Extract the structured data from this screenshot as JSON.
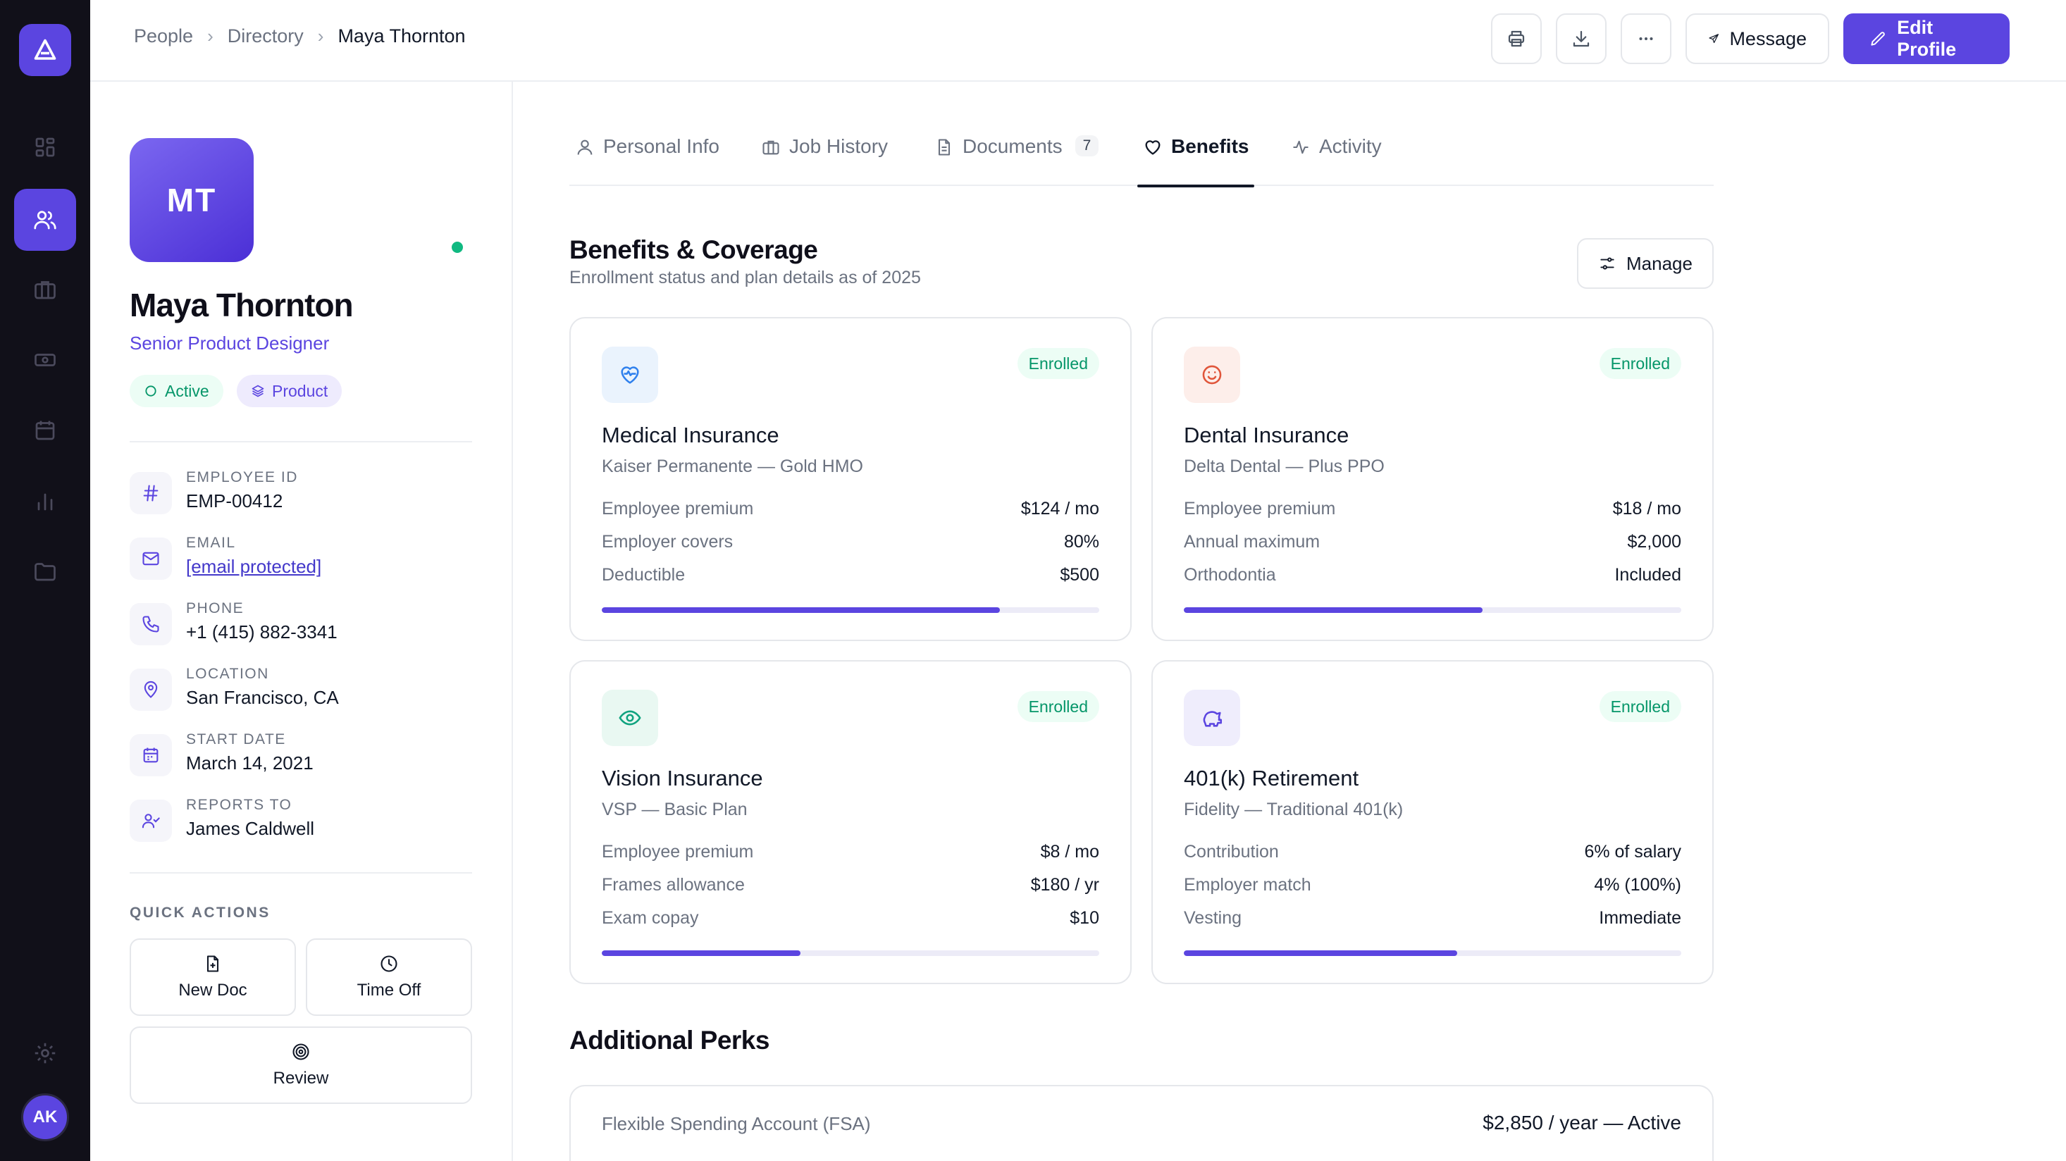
{
  "app": {
    "logo_icon": "triangle-logo-icon",
    "user_initials": "AK",
    "accent": "#5b45e0"
  },
  "rail": {
    "items": [
      {
        "icon": "grid-icon",
        "active": false
      },
      {
        "icon": "people-icon",
        "active": true
      },
      {
        "icon": "briefcase-icon",
        "active": false
      },
      {
        "icon": "money-icon",
        "active": false
      },
      {
        "icon": "calendar-icon",
        "active": false
      },
      {
        "icon": "chart-icon",
        "active": false
      },
      {
        "icon": "folder-icon",
        "active": false
      }
    ],
    "settings_icon": "gear-icon"
  },
  "breadcrumb": {
    "items": [
      "People",
      "Directory"
    ],
    "current": "Maya Thornton"
  },
  "toolbar": {
    "print_icon": "printer-icon",
    "download_icon": "download-icon",
    "more_icon": "more-icon",
    "message_label": "Message",
    "edit_label": "Edit Profile"
  },
  "profile": {
    "initials": "MT",
    "name": "Maya Thornton",
    "role": "Senior Product Designer",
    "status_badge": "Active",
    "team_badge": "Product",
    "fields": [
      {
        "label": "Employee ID",
        "value": "EMP-00412",
        "icon": "hash-icon"
      },
      {
        "label": "Email",
        "value": "[email protected]",
        "icon": "mail-icon"
      },
      {
        "label": "Phone",
        "value": "+1 (415) 882-3341",
        "icon": "phone-icon"
      },
      {
        "label": "Location",
        "value": "San Francisco, CA",
        "icon": "map-pin-icon"
      },
      {
        "label": "Start Date",
        "value": "March 14, 2021",
        "icon": "calendar-icon"
      },
      {
        "label": "Reports To",
        "value": "James Caldwell",
        "icon": "user-check-icon"
      }
    ],
    "quick_actions_title": "QUICK ACTIONS",
    "quick_actions": [
      {
        "label": "New Doc",
        "icon": "file-plus-icon"
      },
      {
        "label": "Time Off",
        "icon": "clock-icon"
      },
      {
        "label": "Review",
        "icon": "target-icon"
      }
    ]
  },
  "tabs": [
    {
      "label": "Personal Info",
      "icon": "user-icon"
    },
    {
      "label": "Job History",
      "icon": "briefcase-icon"
    },
    {
      "label": "Documents",
      "icon": "document-icon",
      "count": "7"
    },
    {
      "label": "Benefits",
      "icon": "heart-icon",
      "active": true
    },
    {
      "label": "Activity",
      "icon": "activity-icon"
    }
  ],
  "benefits": {
    "title": "Benefits & Coverage",
    "subtitle": "Enrollment status and plan details as of 2025",
    "manage_label": "Manage",
    "cards": [
      {
        "title": "Medical Insurance",
        "provider": "Kaiser Permanente — Gold HMO",
        "status": "Enrolled",
        "icon": "heart-pulse-icon",
        "icon_bg": "#eaf3fd",
        "icon_color": "#2f80ed",
        "rows": [
          {
            "k": "Employee premium",
            "v": "$124 / mo"
          },
          {
            "k": "Employer covers",
            "v": "80%"
          },
          {
            "k": "Deductible",
            "v": "$500"
          }
        ],
        "progress": 0.8
      },
      {
        "title": "Dental Insurance",
        "provider": "Delta Dental — Plus PPO",
        "status": "Enrolled",
        "icon": "smile-icon",
        "icon_bg": "#fdeeea",
        "icon_color": "#e0553a",
        "rows": [
          {
            "k": "Employee premium",
            "v": "$18 / mo"
          },
          {
            "k": "Annual maximum",
            "v": "$2,000"
          },
          {
            "k": "Orthodontia",
            "v": "Included"
          }
        ],
        "progress": 0.6
      },
      {
        "title": "Vision Insurance",
        "provider": "VSP — Basic Plan",
        "status": "Enrolled",
        "icon": "eye-icon",
        "icon_bg": "#e9f8f2",
        "icon_color": "#10a37f",
        "rows": [
          {
            "k": "Employee premium",
            "v": "$8 / mo"
          },
          {
            "k": "Frames allowance",
            "v": "$180 / yr"
          },
          {
            "k": "Exam copay",
            "v": "$10"
          }
        ],
        "progress": 0.4
      },
      {
        "title": "401(k) Retirement",
        "provider": "Fidelity — Traditional 401(k)",
        "status": "Enrolled",
        "icon": "piggy-bank-icon",
        "icon_bg": "#efedfc",
        "icon_color": "#5b45e0",
        "rows": [
          {
            "k": "Contribution",
            "v": "6% of salary"
          },
          {
            "k": "Employer match",
            "v": "4% (100%)"
          },
          {
            "k": "Vesting",
            "v": "Immediate"
          }
        ],
        "progress": 0.55
      }
    ]
  },
  "perks": {
    "title": "Additional Perks",
    "items": [
      {
        "k": "Flexible Spending Account (FSA)",
        "v": "$2,850 / year — Active"
      }
    ]
  }
}
